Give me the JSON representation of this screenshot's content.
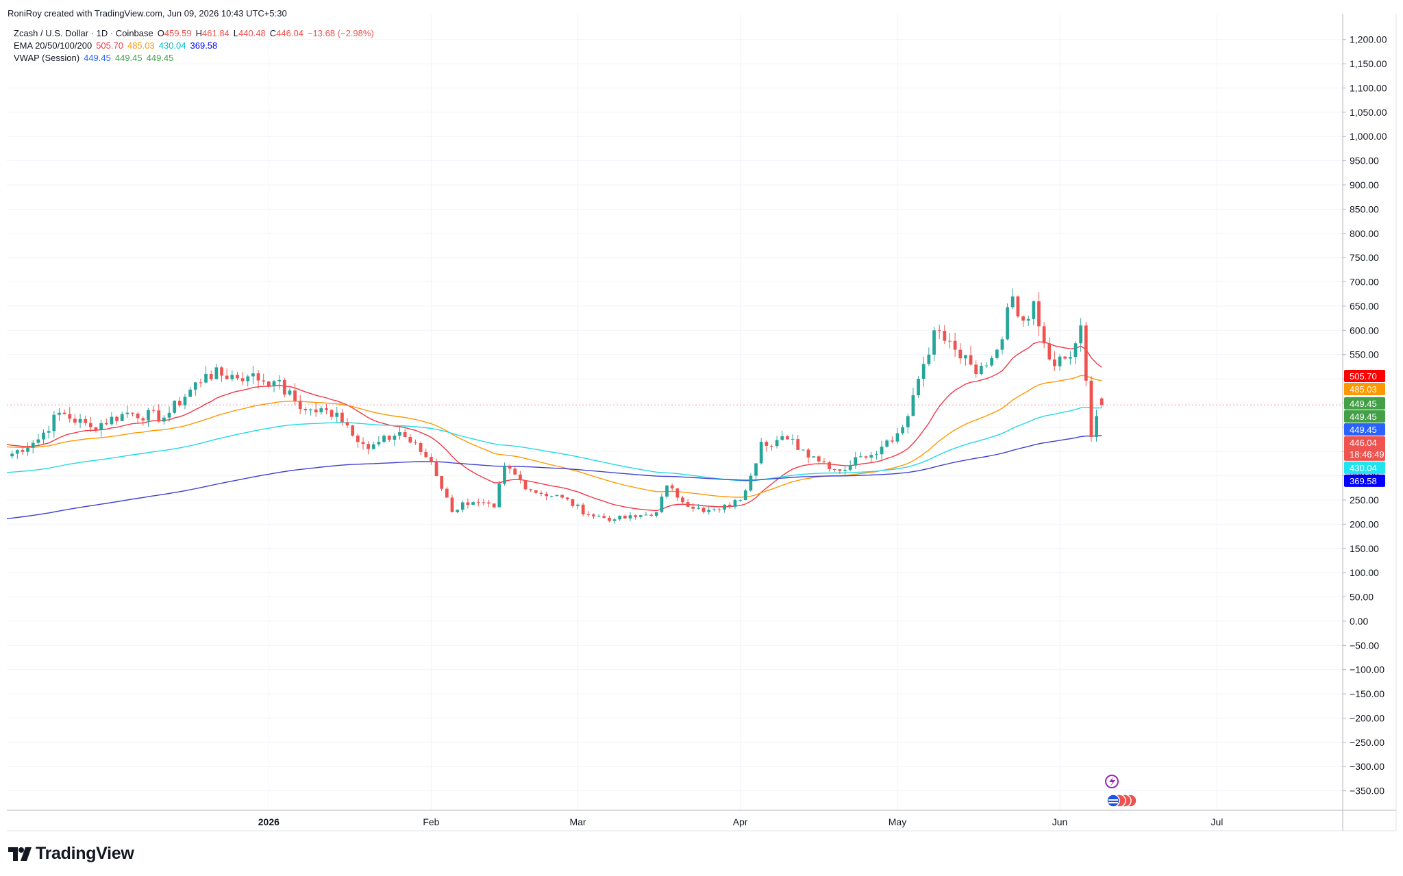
{
  "header": {
    "credit": "RoniRoy created with TradingView.com, Jun 09, 2026 10:43 UTC+5:30",
    "symbol_line": "Zcash / U.S. Dollar · 1D · Coinbase",
    "ohlc": {
      "o_label": "O",
      "o": "459.59",
      "h_label": "H",
      "h": "461.84",
      "l_label": "L",
      "l": "440.48",
      "c_label": "C",
      "c": "446.04",
      "change": "−13.68 (−2.98%)"
    },
    "ema_label": "EMA 20/50/100/200",
    "ema_values": [
      "505.70",
      "485.03",
      "430.04",
      "369.58"
    ],
    "vwap_label": "VWAP (Session)",
    "vwap_values": [
      "449.45",
      "449.45",
      "449.45"
    ]
  },
  "footer": {
    "logo_text": "TradingView"
  },
  "colors": {
    "up": "#26a69a",
    "down": "#ef5350",
    "ema20": "#f23645",
    "ema50": "#ff9800",
    "ema100": "#22d9e6",
    "ema200": "#3f3fd1",
    "vwap": "#43a047",
    "vwap_blue": "#2962ff",
    "grid": "#f0f3fa",
    "axis_text": "#131722"
  },
  "chart_data": {
    "type": "candlestick",
    "title": "Zcash / U.S. Dollar · 1D · Coinbase",
    "y_ticks": [
      "1,200.00",
      "1,150.00",
      "1,100.00",
      "1,050.00",
      "1,000.00",
      "950.00",
      "900.00",
      "850.00",
      "800.00",
      "750.00",
      "700.00",
      "650.00",
      "600.00",
      "550.00",
      "500.00",
      "450.00",
      "400.00",
      "350.00",
      "300.00",
      "250.00",
      "200.00",
      "150.00",
      "100.00",
      "50.00",
      "0.00",
      "−50.00",
      "−100.00",
      "−150.00",
      "−200.00",
      "−250.00",
      "−300.00",
      "−350.00"
    ],
    "ylim": [
      -400,
      1225
    ],
    "x_start": "2025-11-12",
    "x_end": "2026-07-25",
    "x_ticks": [
      {
        "date": "2026-01-01",
        "label": "2026",
        "bold": true
      },
      {
        "date": "2026-02-01",
        "label": "Feb"
      },
      {
        "date": "2026-03-01",
        "label": "Mar"
      },
      {
        "date": "2026-04-01",
        "label": "Apr"
      },
      {
        "date": "2026-05-01",
        "label": "May"
      },
      {
        "date": "2026-06-01",
        "label": "Jun"
      },
      {
        "date": "2026-07-01",
        "label": "Jul"
      }
    ],
    "key_closes": [
      [
        "2025-11-12",
        340
      ],
      [
        "2025-11-18",
        375
      ],
      [
        "2025-11-22",
        430
      ],
      [
        "2025-11-28",
        400
      ],
      [
        "2025-12-05",
        430
      ],
      [
        "2025-12-12",
        420
      ],
      [
        "2025-12-20",
        510
      ],
      [
        "2025-12-28",
        505
      ],
      [
        "2026-01-02",
        495
      ],
      [
        "2026-01-08",
        435
      ],
      [
        "2026-01-14",
        430
      ],
      [
        "2026-01-20",
        355
      ],
      [
        "2026-01-26",
        390
      ],
      [
        "2026-02-01",
        330
      ],
      [
        "2026-02-05",
        225
      ],
      [
        "2026-02-07",
        245
      ],
      [
        "2026-02-13",
        235
      ],
      [
        "2026-02-15",
        320
      ],
      [
        "2026-02-20",
        270
      ],
      [
        "2026-02-26",
        255
      ],
      [
        "2026-03-03",
        220
      ],
      [
        "2026-03-08",
        210
      ],
      [
        "2026-03-12",
        215
      ],
      [
        "2026-03-16",
        225
      ],
      [
        "2026-03-18",
        280
      ],
      [
        "2026-03-20",
        255
      ],
      [
        "2026-03-25",
        225
      ],
      [
        "2026-03-28",
        230
      ],
      [
        "2026-04-01",
        250
      ],
      [
        "2026-04-03",
        300
      ],
      [
        "2026-04-05",
        370
      ],
      [
        "2026-04-10",
        375
      ],
      [
        "2026-04-15",
        340
      ],
      [
        "2026-04-20",
        310
      ],
      [
        "2026-04-24",
        340
      ],
      [
        "2026-04-28",
        360
      ],
      [
        "2026-05-02",
        400
      ],
      [
        "2026-05-05",
        500
      ],
      [
        "2026-05-08",
        600
      ],
      [
        "2026-05-12",
        560
      ],
      [
        "2026-05-16",
        510
      ],
      [
        "2026-05-20",
        560
      ],
      [
        "2026-05-23",
        670
      ],
      [
        "2026-05-25",
        620
      ],
      [
        "2026-05-27",
        660
      ],
      [
        "2026-05-30",
        540
      ],
      [
        "2026-06-03",
        545
      ],
      [
        "2026-06-05",
        610
      ],
      [
        "2026-06-07",
        380
      ],
      [
        "2026-06-09",
        446.04
      ]
    ],
    "last_candle": {
      "date": "2026-06-09",
      "open": 459.59,
      "high": 461.84,
      "low": 440.48,
      "close": 446.04
    },
    "series": [
      {
        "name": "EMA 20",
        "value": 505.7,
        "color": "#f23645"
      },
      {
        "name": "EMA 50",
        "value": 485.03,
        "color": "#ff9800"
      },
      {
        "name": "EMA 100",
        "value": 430.04,
        "color": "#22d9e6"
      },
      {
        "name": "EMA 200",
        "value": 369.58,
        "color": "#3f3fd1"
      },
      {
        "name": "VWAP (Session)",
        "value": 449.45,
        "color": "#43a047"
      }
    ],
    "ema200_start": 210,
    "price_badges": [
      {
        "text": "505.70",
        "value": 505.7,
        "color": "#ff0000"
      },
      {
        "text": "485.03",
        "value": 485.03,
        "color": "#ff9800"
      },
      {
        "text": "449.45",
        "value": 449.45,
        "color": "#43a047"
      },
      {
        "text": "449.45",
        "value": 449.45,
        "color": "#43a047"
      },
      {
        "text": "449.45",
        "value": 449.45,
        "color": "#2962ff"
      },
      {
        "text": "446.04",
        "value": 446.04,
        "color": "#ef5350",
        "sub": "18:46:49"
      },
      {
        "text": "430.04",
        "value": 430.04,
        "color": "#22e3f0"
      },
      {
        "text": "369.58",
        "value": 369.58,
        "color": "#0000ff"
      }
    ],
    "grid": true
  }
}
